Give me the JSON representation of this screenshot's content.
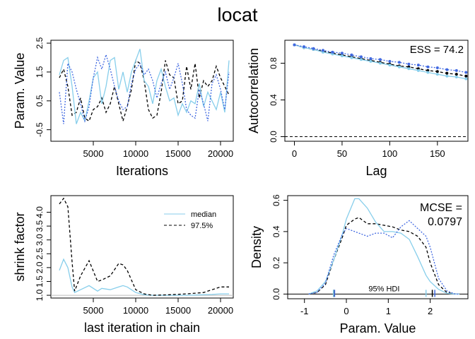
{
  "title": "locat",
  "colors": {
    "chain1": "#000000",
    "chain2": "#87CEEB",
    "chain3": "#4169E1"
  },
  "chart_data": [
    {
      "type": "line",
      "panel": "trace",
      "xlabel": "Iterations",
      "ylabel": "Param. Value",
      "xlim": [
        0,
        21500
      ],
      "ylim": [
        -0.9,
        2.6
      ],
      "xticks": [
        "5000",
        "10000",
        "15000",
        "20000"
      ],
      "yticks": [
        "-0.5",
        "0.5",
        "1.5",
        "2.5"
      ],
      "x": [
        1000,
        1500,
        2000,
        2500,
        3000,
        3500,
        4000,
        4500,
        5000,
        5500,
        6000,
        6500,
        7000,
        7500,
        8000,
        8500,
        9000,
        9500,
        10000,
        10500,
        11000,
        11500,
        12000,
        12500,
        13000,
        13500,
        14000,
        14500,
        15000,
        15500,
        16000,
        16500,
        17000,
        17500,
        18000,
        18500,
        19000,
        19500,
        20000,
        20500,
        21000
      ],
      "series": [
        {
          "color": "chain1",
          "values": [
            1.3,
            1.6,
            1.0,
            0.0,
            0.1,
            0.6,
            -0.1,
            -0.2,
            0.2,
            0.3,
            0.6,
            0.1,
            0.4,
            1.0,
            0.4,
            -0.2,
            0.3,
            0.9,
            1.9,
            1.8,
            1.2,
            0.2,
            -0.1,
            0.0,
            0.8,
            1.9,
            1.4,
            1.3,
            0.4,
            0.5,
            1.7,
            0.9,
            1.8,
            0.6,
            1.2,
            1.0,
            1.2,
            1.7,
            1.3,
            1.0,
            0.7
          ]
        },
        {
          "color": "chain2",
          "values": [
            1.4,
            1.9,
            2.0,
            1.0,
            -0.3,
            0.1,
            -0.2,
            0.5,
            1.3,
            1.5,
            0.4,
            1.0,
            1.9,
            2.0,
            0.9,
            1.5,
            0.8,
            1.5,
            1.9,
            2.3,
            1.2,
            1.0,
            0.4,
            1.2,
            1.6,
            1.0,
            0.5,
            0.6,
            0.0,
            0.4,
            0.1,
            0.5,
            0.4,
            1.1,
            0.3,
            0.8,
            0.5,
            0.2,
            0.8,
            0.1,
            1.9
          ]
        },
        {
          "color": "chain3",
          "values": [
            0.8,
            -0.3,
            1.8,
            1.5,
            0.9,
            0.4,
            -0.2,
            0.3,
            1.3,
            2.0,
            1.6,
            2.1,
            1.6,
            1.0,
            0.5,
            0.2,
            0.3,
            1.1,
            1.6,
            1.8,
            1.4,
            1.6,
            1.2,
            0.6,
            1.1,
            1.5,
            0.9,
            1.3,
            1.8,
            1.1,
            0.2,
            0.0,
            -0.1,
            0.9,
            0.4,
            -0.2,
            1.1,
            1.4,
            0.9,
            0.2,
            1.5
          ]
        }
      ]
    },
    {
      "type": "line",
      "panel": "autocorrelation",
      "xlabel": "Lag",
      "ylabel": "Autocorrelation",
      "annotation": "ESS = 74.2",
      "xlim": [
        -10,
        182
      ],
      "ylim": [
        -0.05,
        1.05
      ],
      "xticks": [
        "0",
        "50",
        "100",
        "150"
      ],
      "yticks": [
        "0.0",
        "0.4",
        "0.8"
      ],
      "x": [
        0,
        10,
        20,
        30,
        40,
        50,
        60,
        70,
        80,
        90,
        100,
        110,
        120,
        130,
        140,
        150,
        160,
        170,
        180
      ],
      "series": [
        {
          "color": "chain1",
          "values": [
            1.0,
            0.97,
            0.95,
            0.93,
            0.91,
            0.89,
            0.87,
            0.85,
            0.83,
            0.81,
            0.79,
            0.77,
            0.76,
            0.74,
            0.72,
            0.71,
            0.69,
            0.68,
            0.66
          ]
        },
        {
          "color": "chain2",
          "values": [
            1.0,
            0.97,
            0.95,
            0.92,
            0.9,
            0.88,
            0.86,
            0.84,
            0.82,
            0.8,
            0.78,
            0.76,
            0.74,
            0.72,
            0.7,
            0.68,
            0.66,
            0.65,
            0.63
          ]
        },
        {
          "color": "chain3",
          "values": [
            1.0,
            0.98,
            0.96,
            0.94,
            0.92,
            0.91,
            0.89,
            0.87,
            0.85,
            0.84,
            0.82,
            0.81,
            0.79,
            0.78,
            0.76,
            0.75,
            0.73,
            0.72,
            0.7
          ]
        }
      ]
    },
    {
      "type": "line",
      "panel": "shrink",
      "xlabel": "last iteration in chain",
      "ylabel": "shrink factor",
      "xlim": [
        0,
        21500
      ],
      "ylim": [
        0.9,
        4.6
      ],
      "xticks": [
        "5000",
        "10000",
        "15000",
        "20000"
      ],
      "yticks": [
        "1.0",
        "1.5",
        "2.0",
        "2.5",
        "3.0",
        "3.5",
        "4.0"
      ],
      "legend": {
        "position": "top-right",
        "entries": [
          "median",
          "97.5%"
        ]
      },
      "x": [
        1000,
        1500,
        2000,
        2500,
        2800,
        3500,
        4500,
        5500,
        6000,
        7000,
        8000,
        8500,
        9000,
        10000,
        11000,
        12000,
        14000,
        16000,
        18000,
        19000,
        20000,
        21000
      ],
      "series": [
        {
          "name": "median",
          "color": "chain2",
          "values": [
            1.9,
            2.3,
            2.0,
            1.3,
            1.1,
            1.2,
            1.35,
            1.15,
            1.25,
            1.2,
            1.3,
            1.35,
            1.3,
            1.1,
            1.02,
            1.0,
            1.0,
            1.0,
            1.02,
            1.03,
            1.05,
            1.05
          ]
        },
        {
          "name": "97.5%",
          "color": "chain1",
          "values": [
            4.3,
            4.5,
            4.2,
            2.2,
            1.15,
            1.7,
            2.25,
            1.5,
            1.55,
            1.7,
            2.15,
            2.1,
            1.9,
            1.2,
            1.05,
            1.0,
            1.02,
            1.05,
            1.1,
            1.2,
            1.3,
            1.3
          ]
        }
      ]
    },
    {
      "type": "line",
      "panel": "density",
      "xlabel": "Param. Value",
      "ylabel": "Density",
      "annotation": [
        "MCSE =",
        "0.0797"
      ],
      "hdi_label": "95% HDI",
      "xlim": [
        -1.4,
        2.9
      ],
      "ylim": [
        -0.03,
        0.63
      ],
      "xticks": [
        "-1",
        "0",
        "1",
        "2"
      ],
      "yticks": [
        "0.0",
        "0.2",
        "0.4",
        "0.6"
      ],
      "x": [
        -0.9,
        -0.7,
        -0.5,
        -0.3,
        -0.1,
        0.0,
        0.2,
        0.3,
        0.5,
        0.7,
        0.9,
        1.1,
        1.3,
        1.5,
        1.7,
        1.9,
        2.0,
        2.2,
        2.4,
        2.6,
        2.7
      ],
      "series": [
        {
          "color": "chain1",
          "values": [
            0.0,
            0.01,
            0.06,
            0.22,
            0.36,
            0.44,
            0.48,
            0.49,
            0.45,
            0.45,
            0.44,
            0.43,
            0.41,
            0.4,
            0.37,
            0.3,
            0.2,
            0.06,
            0.01,
            0.0,
            0.0
          ]
        },
        {
          "color": "chain2",
          "values": [
            0.0,
            0.02,
            0.08,
            0.22,
            0.38,
            0.48,
            0.61,
            0.61,
            0.55,
            0.46,
            0.4,
            0.4,
            0.39,
            0.35,
            0.24,
            0.12,
            0.08,
            0.03,
            0.005,
            0.0,
            0.0
          ]
        },
        {
          "color": "chain3",
          "values": [
            0.0,
            0.01,
            0.07,
            0.25,
            0.38,
            0.42,
            0.4,
            0.39,
            0.37,
            0.39,
            0.39,
            0.36,
            0.43,
            0.47,
            0.42,
            0.37,
            0.3,
            0.1,
            0.02,
            0.0,
            0.0
          ]
        }
      ],
      "hdi": [
        {
          "color": "chain1",
          "lo": -0.3,
          "hi": 2.05
        },
        {
          "color": "chain2",
          "lo": -0.31,
          "hi": 1.9
        },
        {
          "color": "chain3",
          "lo": -0.28,
          "hi": 2.11
        }
      ]
    }
  ]
}
